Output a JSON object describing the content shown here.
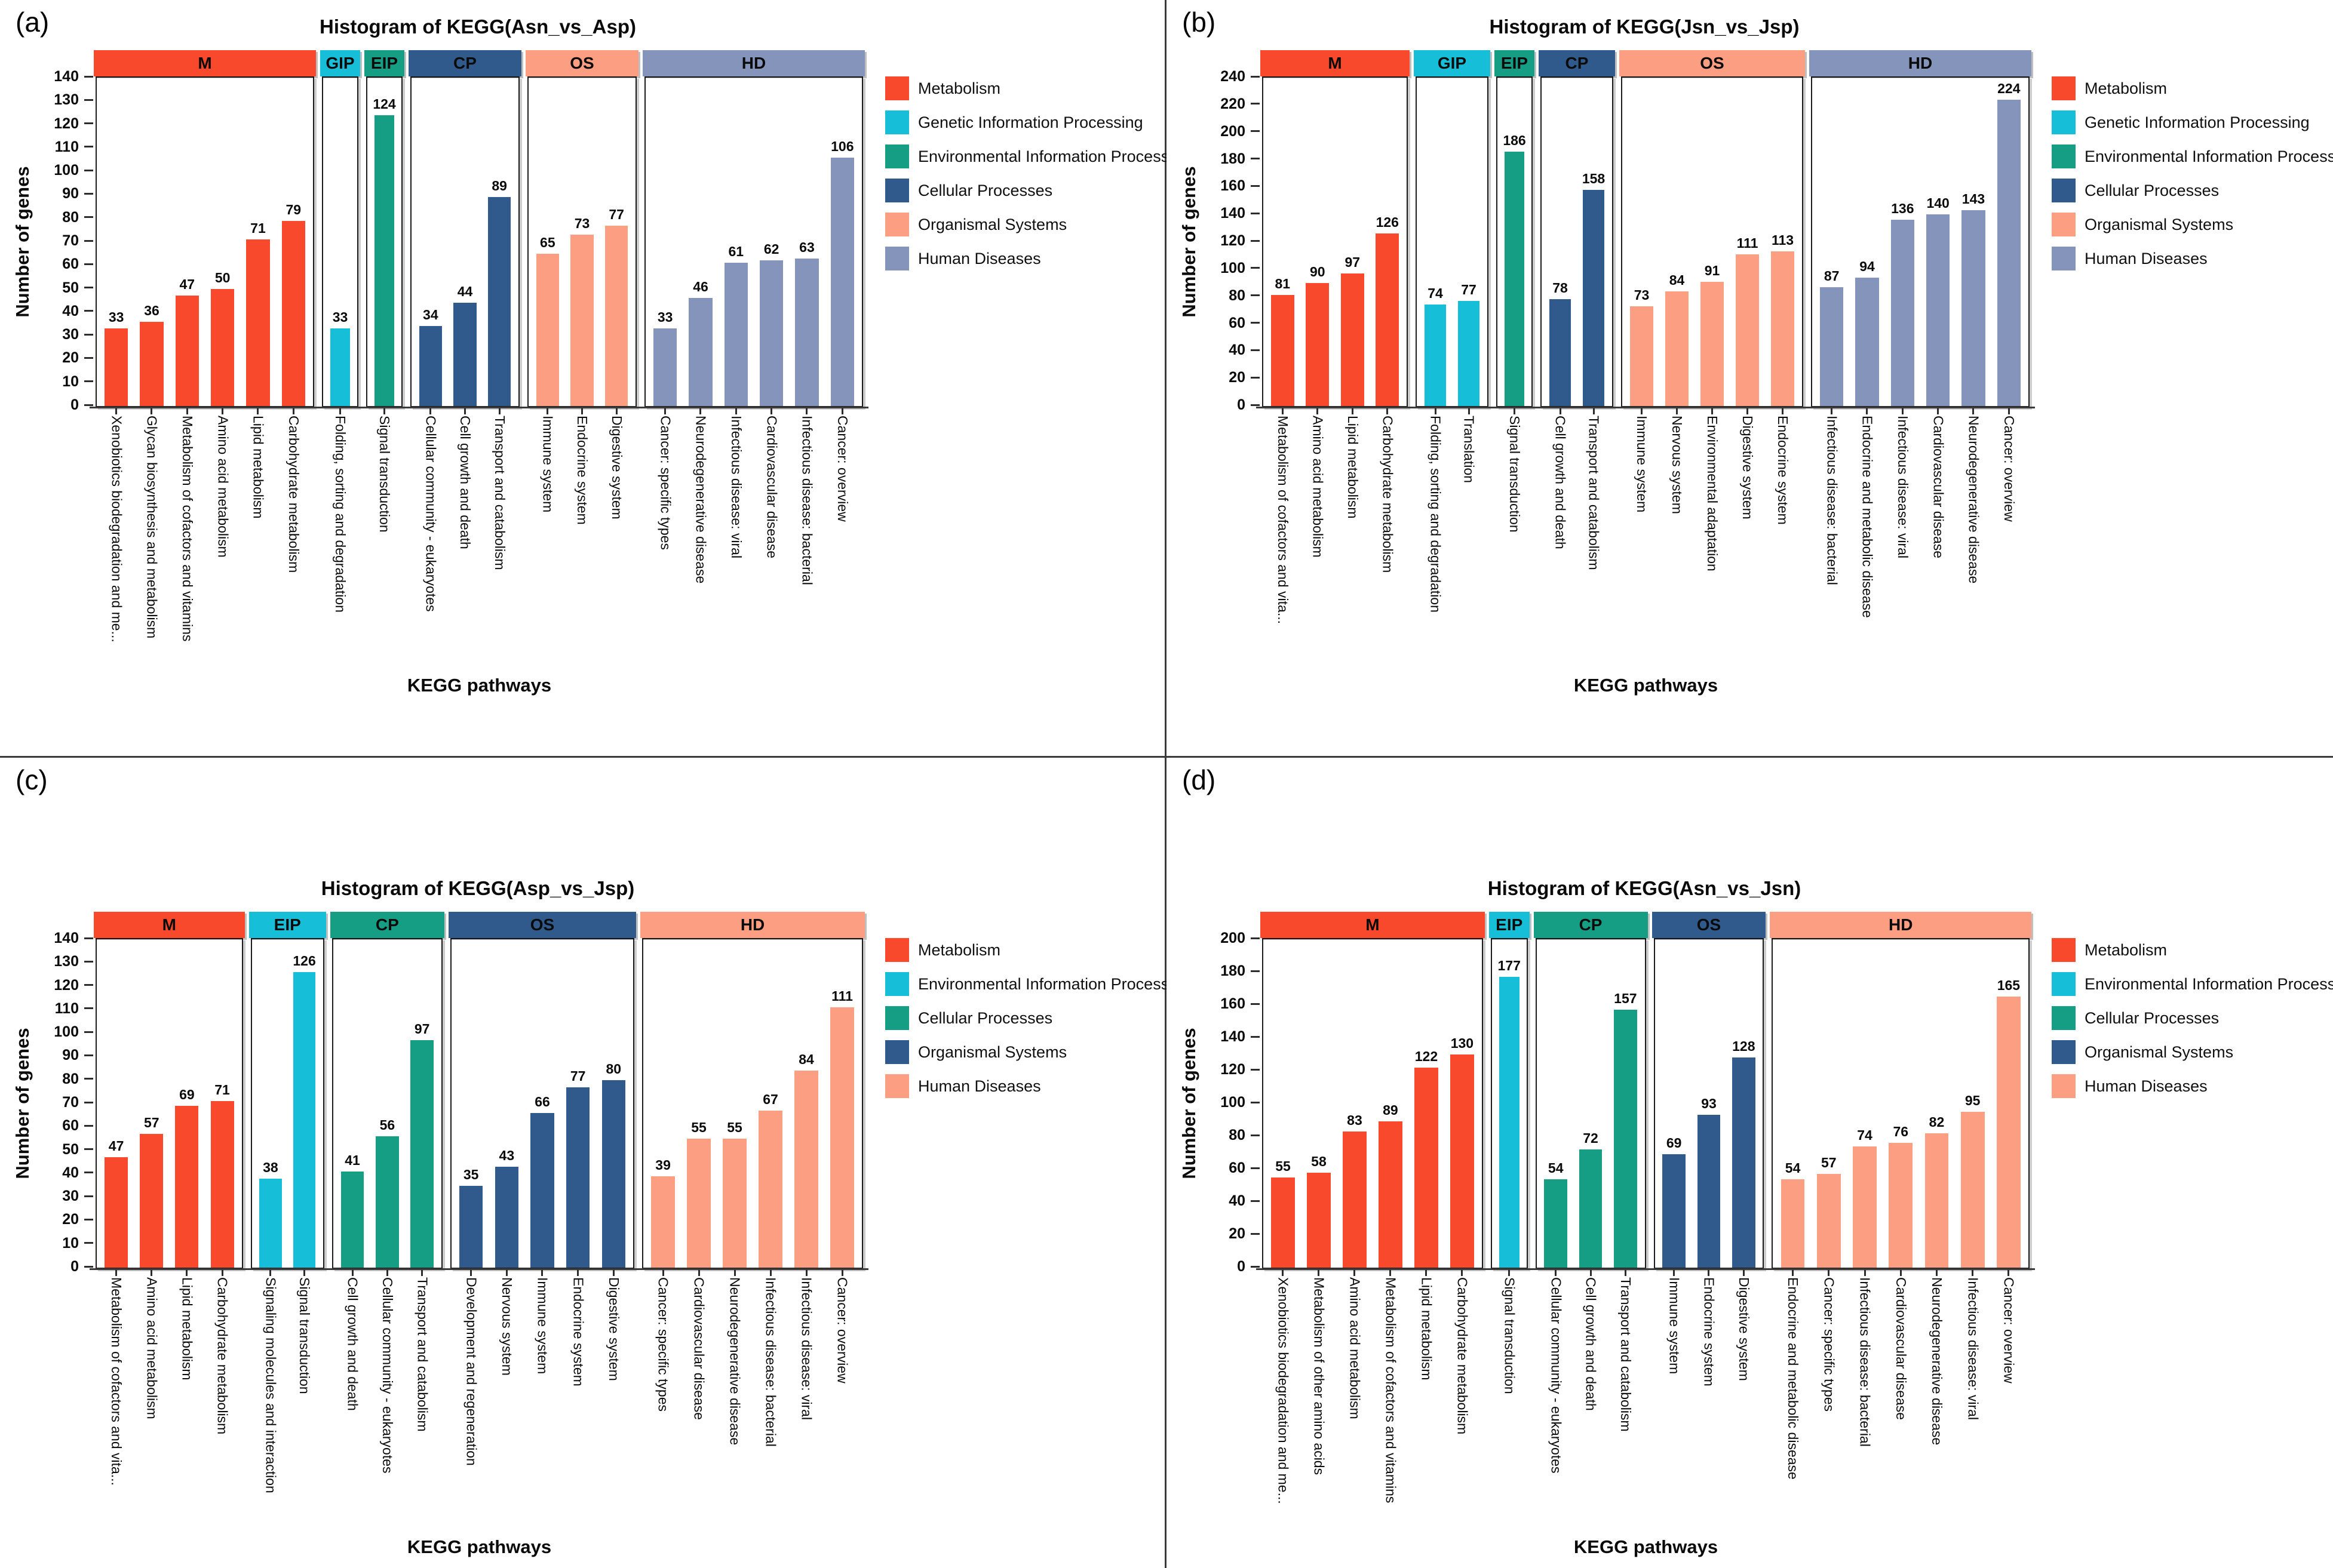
{
  "page": {
    "background": "#ffffff",
    "divider_color": "#3a3a3a"
  },
  "palette": {
    "red": "#F9492D",
    "cyan": "#16BED8",
    "teal": "#169E84",
    "navy": "#315A8C",
    "salmon": "#FC9E81",
    "bluegray": "#8594BA"
  },
  "chart_data": [
    {
      "id": "a",
      "letter": "(a)",
      "title": "Histogram of KEGG(Asn_vs_Asp)",
      "type": "bar",
      "xlabel": "KEGG pathways",
      "ylabel": "Number of genes",
      "ylim": [
        0,
        140
      ],
      "yticks": [
        0,
        10,
        20,
        30,
        40,
        50,
        60,
        70,
        80,
        90,
        100,
        110,
        120,
        130,
        140
      ],
      "legend_position": "right",
      "facets": [
        {
          "label": "M",
          "color": "red",
          "categories": [
            "Xenobiotics biodegradation and me...",
            "Glycan biosynthesis and metabolism",
            "Metabolism of cofactors and vitamins",
            "Amino acid metabolism",
            "Lipid metabolism",
            "Carbohydrate metabolism"
          ],
          "values": [
            33,
            36,
            47,
            50,
            71,
            79
          ]
        },
        {
          "label": "GIP",
          "color": "cyan",
          "categories": [
            "Folding, sorting and degradation"
          ],
          "values": [
            33
          ]
        },
        {
          "label": "EIP",
          "color": "teal",
          "categories": [
            "Signal transduction"
          ],
          "values": [
            124
          ]
        },
        {
          "label": "CP",
          "color": "navy",
          "categories": [
            "Cellular community - eukaryotes",
            "Cell growth and death",
            "Transport and catabolism"
          ],
          "values": [
            34,
            44,
            89
          ]
        },
        {
          "label": "OS",
          "color": "salmon",
          "categories": [
            "Immune system",
            "Endocrine system",
            "Digestive system"
          ],
          "values": [
            65,
            73,
            77
          ]
        },
        {
          "label": "HD",
          "color": "bluegray",
          "categories": [
            "Cancer: specific types",
            "Neurodegenerative disease",
            "Infectious disease: viral",
            "Cardiovascular disease",
            "Infectious disease: bacterial",
            "Cancer: overview"
          ],
          "values": [
            33,
            46,
            61,
            62,
            63,
            106
          ]
        }
      ],
      "legend": [
        {
          "label": "Metabolism",
          "color": "red"
        },
        {
          "label": "Genetic Information Processing",
          "color": "cyan"
        },
        {
          "label": "Environmental Information Processing",
          "color": "teal"
        },
        {
          "label": "Cellular Processes",
          "color": "navy"
        },
        {
          "label": "Organismal Systems",
          "color": "salmon"
        },
        {
          "label": "Human Diseases",
          "color": "bluegray"
        }
      ]
    },
    {
      "id": "b",
      "letter": "(b)",
      "title": "Histogram of KEGG(Jsn_vs_Jsp)",
      "type": "bar",
      "xlabel": "KEGG pathways",
      "ylabel": "Number of genes",
      "ylim": [
        0,
        240
      ],
      "yticks": [
        0,
        20,
        40,
        60,
        80,
        100,
        120,
        140,
        160,
        180,
        200,
        220,
        240
      ],
      "legend_position": "right",
      "facets": [
        {
          "label": "M",
          "color": "red",
          "categories": [
            "Metabolism of cofactors and vita...",
            "Amino acid metabolism",
            "Lipid metabolism",
            "Carbohydrate metabolism"
          ],
          "values": [
            81,
            90,
            97,
            126
          ]
        },
        {
          "label": "GIP",
          "color": "cyan",
          "categories": [
            "Folding, sorting and degradation",
            "Translation"
          ],
          "values": [
            74,
            77
          ]
        },
        {
          "label": "EIP",
          "color": "teal",
          "categories": [
            "Signal transduction"
          ],
          "values": [
            186
          ]
        },
        {
          "label": "CP",
          "color": "navy",
          "categories": [
            "Cell growth and death",
            "Transport and catabolism"
          ],
          "values": [
            78,
            158
          ]
        },
        {
          "label": "OS",
          "color": "salmon",
          "categories": [
            "Immune system",
            "Nervous system",
            "Environmental adaptation",
            "Digestive system",
            "Endocrine system"
          ],
          "values": [
            73,
            84,
            91,
            111,
            113
          ]
        },
        {
          "label": "HD",
          "color": "bluegray",
          "categories": [
            "Infectious disease: bacterial",
            "Endocrine and metabolic disease",
            "Infectious disease: viral",
            "Cardiovascular disease",
            "Neurodegenerative disease",
            "Cancer: overview"
          ],
          "values": [
            87,
            94,
            136,
            140,
            143,
            224
          ]
        }
      ],
      "legend": [
        {
          "label": "Metabolism",
          "color": "red"
        },
        {
          "label": "Genetic Information Processing",
          "color": "cyan"
        },
        {
          "label": "Environmental Information Processing",
          "color": "teal"
        },
        {
          "label": "Cellular Processes",
          "color": "navy"
        },
        {
          "label": "Organismal Systems",
          "color": "salmon"
        },
        {
          "label": "Human Diseases",
          "color": "bluegray"
        }
      ]
    },
    {
      "id": "c",
      "letter": "(c)",
      "title": "Histogram of KEGG(Asp_vs_Jsp)",
      "type": "bar",
      "xlabel": "KEGG pathways",
      "ylabel": "Number of genes",
      "ylim": [
        0,
        140
      ],
      "yticks": [
        0,
        10,
        20,
        30,
        40,
        50,
        60,
        70,
        80,
        90,
        100,
        110,
        120,
        130,
        140
      ],
      "legend_position": "right",
      "facets": [
        {
          "label": "M",
          "color": "red",
          "categories": [
            "Metabolism of cofactors and vita...",
            "Amino acid metabolism",
            "Lipid metabolism",
            "Carbohydrate metabolism"
          ],
          "values": [
            47,
            57,
            69,
            71
          ]
        },
        {
          "label": "EIP",
          "color": "cyan",
          "categories": [
            "Signaling molecules and interaction",
            "Signal transduction"
          ],
          "values": [
            38,
            126
          ]
        },
        {
          "label": "CP",
          "color": "teal",
          "categories": [
            "Cell growth and death",
            "Cellular community - eukaryotes",
            "Transport and catabolism"
          ],
          "values": [
            41,
            56,
            97
          ]
        },
        {
          "label": "OS",
          "color": "navy",
          "categories": [
            "Development and regeneration",
            "Nervous system",
            "Immune system",
            "Endocrine system",
            "Digestive system"
          ],
          "values": [
            35,
            43,
            66,
            77,
            80
          ]
        },
        {
          "label": "HD",
          "color": "salmon",
          "categories": [
            "Cancer: specific types",
            "Cardiovascular disease",
            "Neurodegenerative disease",
            "Infectious disease: bacterial",
            "Infectious disease: viral",
            "Cancer: overview"
          ],
          "values": [
            39,
            55,
            55,
            67,
            84,
            111
          ]
        }
      ],
      "legend": [
        {
          "label": "Metabolism",
          "color": "red"
        },
        {
          "label": "Environmental Information Processing",
          "color": "cyan"
        },
        {
          "label": "Cellular Processes",
          "color": "teal"
        },
        {
          "label": "Organismal Systems",
          "color": "navy"
        },
        {
          "label": "Human Diseases",
          "color": "salmon"
        }
      ]
    },
    {
      "id": "d",
      "letter": "(d)",
      "title": "Histogram of KEGG(Asn_vs_Jsn)",
      "type": "bar",
      "xlabel": "KEGG pathways",
      "ylabel": "Number of genes",
      "ylim": [
        0,
        200
      ],
      "yticks": [
        0,
        20,
        40,
        60,
        80,
        100,
        120,
        140,
        160,
        180,
        200
      ],
      "legend_position": "right",
      "facets": [
        {
          "label": "M",
          "color": "red",
          "categories": [
            "Xenobiotics biodegradation and me...",
            "Metabolism of other amino acids",
            "Amino acid metabolism",
            "Metabolism of cofactors and vitamins",
            "Lipid metabolism",
            "Carbohydrate metabolism"
          ],
          "values": [
            55,
            58,
            83,
            89,
            122,
            130
          ]
        },
        {
          "label": "EIP",
          "color": "cyan",
          "categories": [
            "Signal transduction"
          ],
          "values": [
            177
          ]
        },
        {
          "label": "CP",
          "color": "teal",
          "categories": [
            "Cellular community - eukaryotes",
            "Cell growth and death",
            "Transport and catabolism"
          ],
          "values": [
            54,
            72,
            157
          ]
        },
        {
          "label": "OS",
          "color": "navy",
          "categories": [
            "Immune system",
            "Endocrine system",
            "Digestive system"
          ],
          "values": [
            69,
            93,
            128
          ]
        },
        {
          "label": "HD",
          "color": "salmon",
          "categories": [
            "Endocrine and metabolic disease",
            "Cancer: specific types",
            "Infectious disease: bacterial",
            "Cardiovascular disease",
            "Neurodegenerative disease",
            "Infectious disease: viral",
            "Cancer: overview"
          ],
          "values": [
            54,
            57,
            74,
            76,
            82,
            95,
            165
          ]
        }
      ],
      "legend": [
        {
          "label": "Metabolism",
          "color": "red"
        },
        {
          "label": "Environmental Information Processing",
          "color": "cyan"
        },
        {
          "label": "Cellular Processes",
          "color": "teal"
        },
        {
          "label": "Organismal Systems",
          "color": "navy"
        },
        {
          "label": "Human Diseases",
          "color": "salmon"
        }
      ]
    }
  ]
}
